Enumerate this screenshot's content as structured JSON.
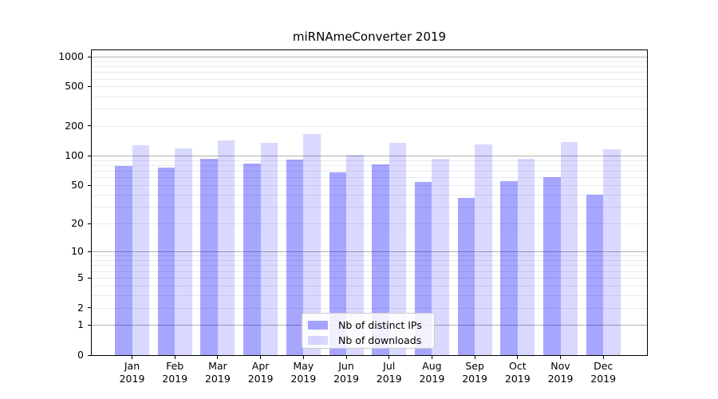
{
  "title": "miRNAmeConverter 2019",
  "chart_data": {
    "type": "bar",
    "title": "miRNAmeConverter 2019",
    "categories": [
      "Jan",
      "Feb",
      "Mar",
      "Apr",
      "May",
      "Jun",
      "Jul",
      "Aug",
      "Sep",
      "Oct",
      "Nov",
      "Dec"
    ],
    "year_label": "2019",
    "series": [
      {
        "id": "distinct-ips",
        "name": "Nb of distinct IPs",
        "color_hex": "#a6a6ff",
        "rgba": "rgba(0,0,255,0.35)",
        "values": [
          78,
          76,
          94,
          84,
          92,
          68,
          82,
          54,
          37,
          55,
          60,
          40
        ]
      },
      {
        "id": "downloads",
        "name": "Nb of downloads",
        "color_hex": "#d9d9ff",
        "rgba": "rgba(0,0,255,0.15)",
        "values": [
          127,
          118,
          144,
          135,
          165,
          102,
          134,
          93,
          130,
          94,
          137,
          116
        ]
      }
    ],
    "xlabel": "",
    "ylabel": "",
    "y_scale": "log1p",
    "ylim": [
      0,
      1160
    ],
    "y_ticks": [
      1000,
      500,
      200,
      100,
      50,
      20,
      10,
      5,
      2,
      1,
      0
    ],
    "y_tick_labels": [
      "1000",
      "500",
      "200",
      "100",
      "50",
      "20",
      "10",
      "5",
      "2",
      "1",
      "0"
    ],
    "grid": {
      "on": true,
      "major_values": [
        1,
        10,
        100,
        1000
      ],
      "minor_values": [
        2,
        3,
        4,
        5,
        6,
        7,
        8,
        9,
        20,
        30,
        40,
        50,
        60,
        70,
        80,
        90,
        200,
        300,
        400,
        500,
        600,
        700,
        800,
        900
      ],
      "major_color": "#b0b0b0",
      "minor_color": "#eaeaea"
    },
    "legend_position": "lower center"
  }
}
